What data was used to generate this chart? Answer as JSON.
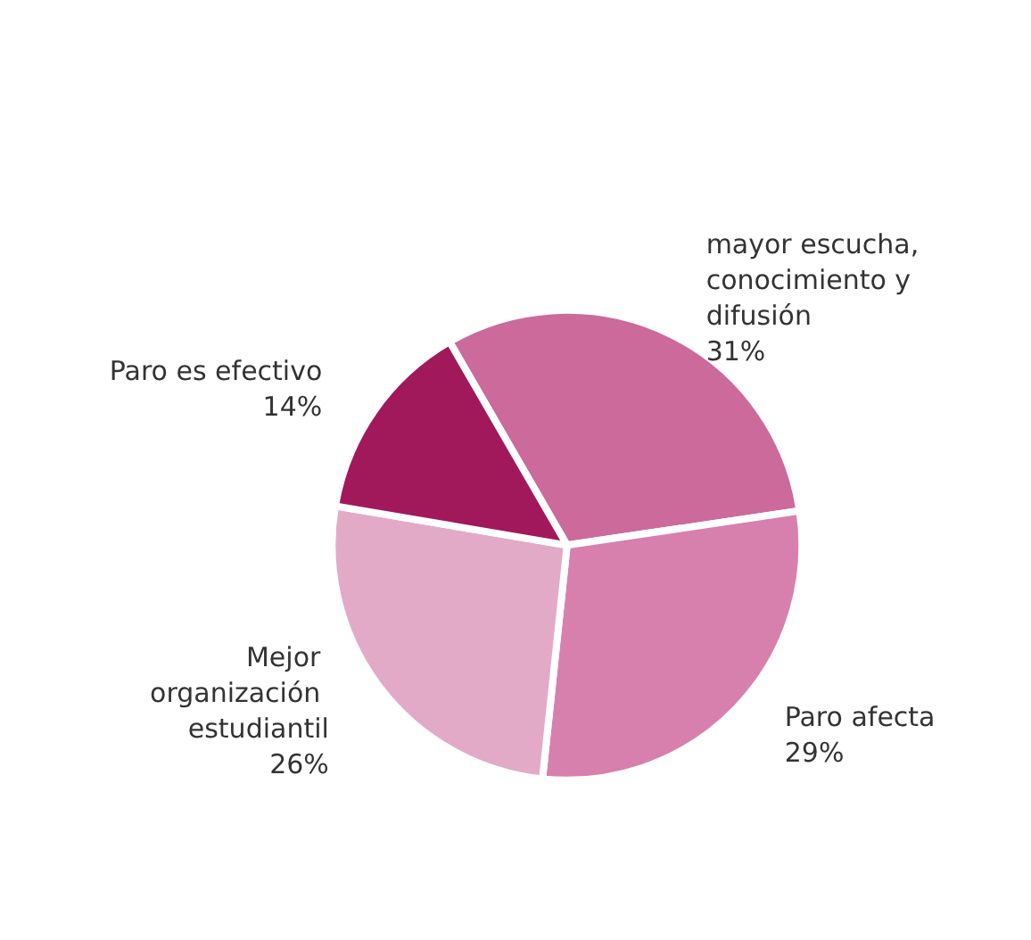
{
  "chart_data": {
    "type": "pie",
    "categories": [
      "mayor escucha, conocimiento y difusión",
      "Paro afecta",
      "Mejor organización estudiantil",
      "Paro es efectivo"
    ],
    "values": [
      31,
      29,
      26,
      14
    ],
    "value_labels": [
      "31%",
      "29%",
      "26%",
      "14%"
    ],
    "colors": [
      "#cc6a9c",
      "#d880ad",
      "#e3aac8",
      "#a2195b"
    ],
    "legend": false
  }
}
